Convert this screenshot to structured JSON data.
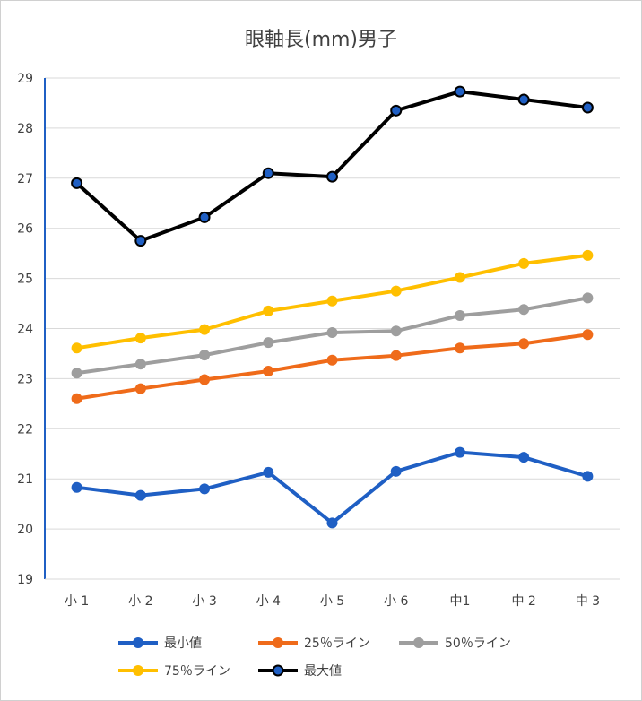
{
  "chart_data": {
    "type": "line",
    "title": "眼軸長(mm)男子",
    "xlabel": "",
    "ylabel": "",
    "categories": [
      "小 1",
      "小 2",
      "小 3",
      "小 4",
      "小 5",
      "小 6",
      "中1",
      "中 2",
      "中 3"
    ],
    "ylim": [
      19,
      29
    ],
    "yticks": [
      19,
      20,
      21,
      22,
      23,
      24,
      25,
      26,
      27,
      28,
      29
    ],
    "grid": true,
    "legend_position": "bottom",
    "series": [
      {
        "name": "最小値",
        "color": "#1f5fc4",
        "marker_fill": "#1f5fc4",
        "values": [
          20.83,
          20.67,
          20.8,
          21.13,
          20.12,
          21.15,
          21.53,
          21.43,
          21.05
        ]
      },
      {
        "name": "25％ライン",
        "color": "#ef6b1a",
        "marker_fill": "#ef6b1a",
        "values": [
          22.6,
          22.8,
          22.98,
          23.15,
          23.37,
          23.46,
          23.61,
          23.7,
          23.88
        ]
      },
      {
        "name": "50％ライン",
        "color": "#9e9e9e",
        "marker_fill": "#9e9e9e",
        "values": [
          23.11,
          23.29,
          23.47,
          23.72,
          23.92,
          23.95,
          24.26,
          24.38,
          24.61
        ]
      },
      {
        "name": "75％ライン",
        "color": "#ffbf00",
        "marker_fill": "#ffbf00",
        "values": [
          23.61,
          23.81,
          23.98,
          24.35,
          24.55,
          24.75,
          25.02,
          25.3,
          25.46
        ]
      },
      {
        "name": "最大値",
        "color": "#000000",
        "marker_fill": "#1f5fc4",
        "values": [
          26.9,
          25.75,
          26.22,
          27.1,
          27.03,
          28.35,
          28.73,
          28.57,
          28.41
        ]
      }
    ]
  }
}
